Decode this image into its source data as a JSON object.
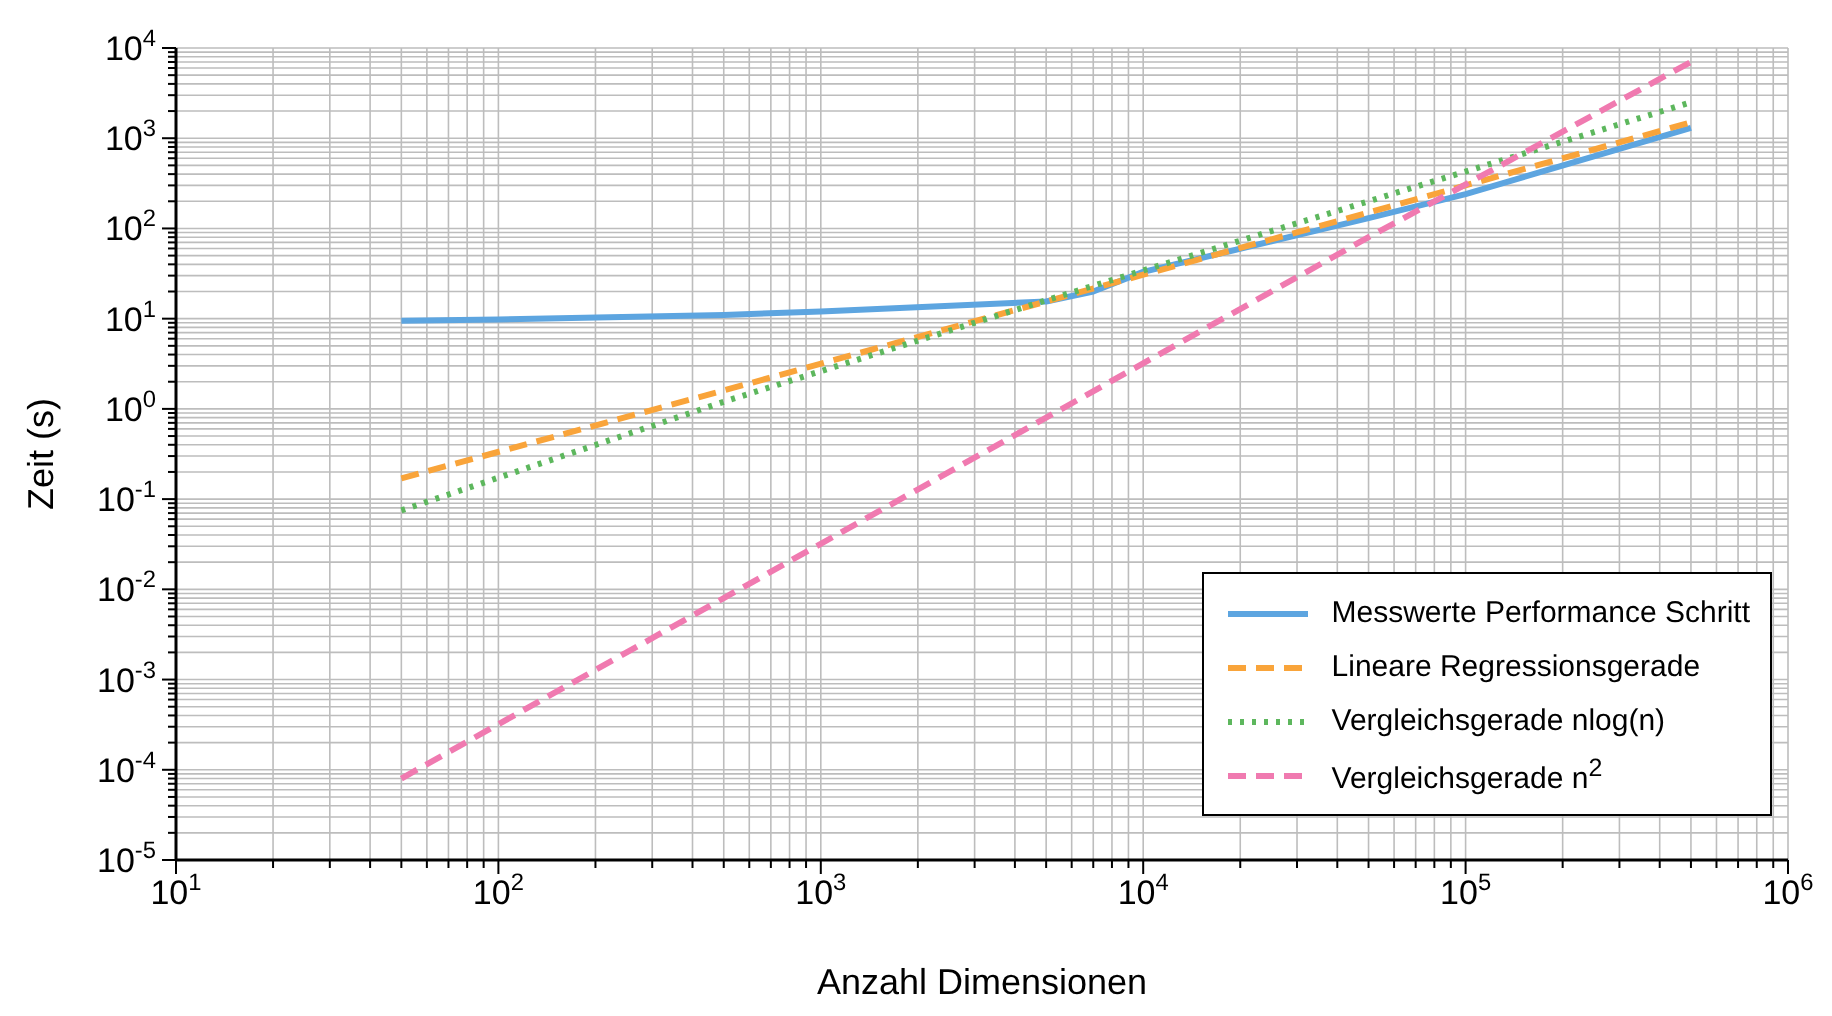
{
  "chart_data": {
    "type": "line",
    "xlabel": "Anzahl Dimensionen",
    "ylabel": "Zeit (s)",
    "log": "xy",
    "grid": true,
    "legend": "bottom right",
    "xlim": [
      10,
      1000000
    ],
    "ylim": [
      1e-05,
      10000
    ],
    "xticks": [
      {
        "value": 10,
        "label": "10$^{1}$"
      },
      {
        "value": 100,
        "label": "10$^{2}$"
      },
      {
        "value": 1000,
        "label": "10$^{3}$"
      },
      {
        "value": 10000,
        "label": "10$^{4}$"
      },
      {
        "value": 100000,
        "label": "10$^{5}$"
      },
      {
        "value": 1000000,
        "label": "10$^{6}$"
      }
    ],
    "yticks": [
      {
        "value": 1e-05,
        "label": "10$^{-5}$"
      },
      {
        "value": 0.0001,
        "label": "10$^{-4}$"
      },
      {
        "value": 0.001,
        "label": "10$^{-3}$"
      },
      {
        "value": 0.01,
        "label": "10$^{-2}$"
      },
      {
        "value": 0.1,
        "label": "10$^{-1}$"
      },
      {
        "value": 1,
        "label": "10$^{0}$"
      },
      {
        "value": 10,
        "label": "10$^{1}$"
      },
      {
        "value": 100,
        "label": "10$^{2}$"
      },
      {
        "value": 1000,
        "label": "10$^{3}$"
      },
      {
        "value": 10000,
        "label": "10$^{4}$"
      }
    ],
    "series": [
      {
        "name": "Messwerte Performance Schritt",
        "color": "#5da5e0",
        "line_style": "solid",
        "x": [
          50,
          100,
          500,
          1000,
          5000,
          7000,
          10000,
          50000,
          100000,
          500000
        ],
        "values": [
          9.5,
          9.8,
          11,
          12,
          15.5,
          20,
          33,
          130,
          240,
          1300
        ]
      },
      {
        "name": "Lineare Regressionsgerade",
        "color": "#f9a43a",
        "line_style": "dashed",
        "x": [
          50,
          500,
          5000,
          50000,
          500000
        ],
        "values": [
          0.17,
          1.6,
          15.5,
          150,
          1500
        ]
      },
      {
        "name": "Vergleichsgerade nlog(n)",
        "color": "#5db75d",
        "line_style": "dotted",
        "x": [
          50,
          500,
          5000,
          50000,
          500000
        ],
        "values": [
          0.075,
          1.2,
          16,
          200,
          2500
        ]
      },
      {
        "name": "Vergleichsgerade n$^{2}$",
        "color": "#f07ab0",
        "line_style": "dashed",
        "x": [
          50,
          500,
          5000,
          50000,
          500000
        ],
        "values": [
          8e-05,
          0.008,
          0.8,
          80,
          7000
        ]
      }
    ]
  }
}
